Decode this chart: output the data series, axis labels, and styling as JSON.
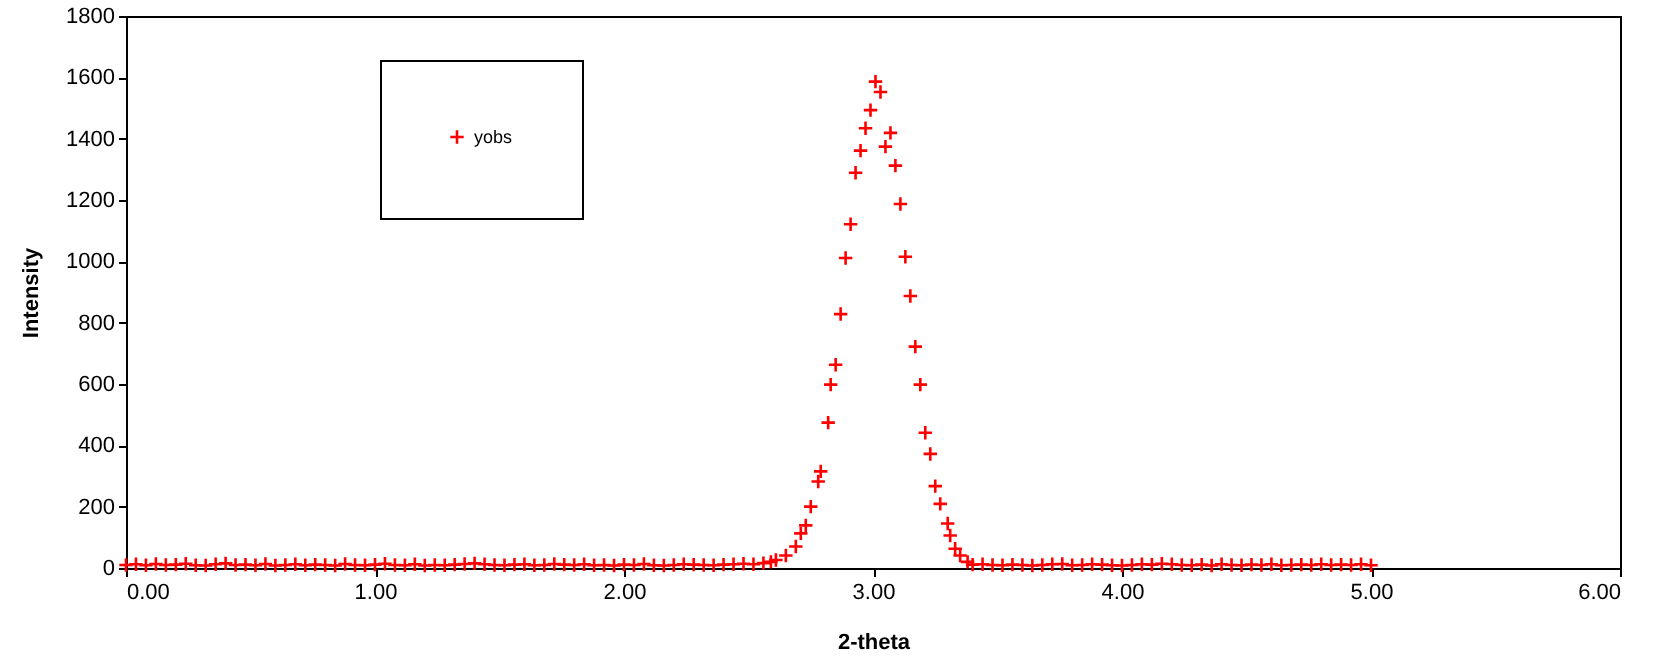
{
  "chart_data": {
    "type": "scatter",
    "xlabel": "2-theta",
    "ylabel": "Intensity",
    "marker": "cross",
    "legend": "top left",
    "grid": false,
    "xlim": [
      0,
      6
    ],
    "xticks": [
      {
        "value": 0,
        "label": "0.00"
      },
      {
        "value": 1,
        "label": "1.00"
      },
      {
        "value": 2,
        "label": "2.00"
      },
      {
        "value": 3,
        "label": "3.00"
      },
      {
        "value": 4,
        "label": "4.00"
      },
      {
        "value": 5,
        "label": "5.00"
      },
      {
        "value": 6,
        "label": "6.00"
      }
    ],
    "ylim": [
      0,
      1800
    ],
    "yticks": [
      0,
      200,
      400,
      600,
      800,
      1000,
      1200,
      1400,
      1600,
      1800
    ],
    "series": [
      {
        "name": "yobs",
        "color": "#ff0000",
        "x": [
          0,
          0.04,
          0.08,
          0.12,
          0.16,
          0.2,
          0.24,
          0.28,
          0.32,
          0.36,
          0.4,
          0.44,
          0.48,
          0.52,
          0.56,
          0.6,
          0.64,
          0.68,
          0.72,
          0.76,
          0.8,
          0.84,
          0.88,
          0.92,
          0.96,
          1.0,
          1.04,
          1.08,
          1.12,
          1.16,
          1.2,
          1.24,
          1.28,
          1.32,
          1.36,
          1.4,
          1.44,
          1.48,
          1.52,
          1.56,
          1.6,
          1.64,
          1.68,
          1.72,
          1.76,
          1.8,
          1.84,
          1.88,
          1.92,
          1.96,
          2.0,
          2.04,
          2.08,
          2.12,
          2.16,
          2.2,
          2.24,
          2.28,
          2.32,
          2.36,
          2.4,
          2.44,
          2.48,
          2.52,
          2.56,
          2.59,
          2.61,
          2.65,
          2.69,
          2.71,
          2.73,
          2.75,
          2.78,
          2.79,
          2.82,
          2.83,
          2.85,
          2.87,
          2.89,
          2.91,
          2.93,
          2.95,
          2.97,
          2.99,
          3.01,
          3.03,
          3.05,
          3.07,
          3.09,
          3.11,
          3.13,
          3.15,
          3.17,
          3.19,
          3.21,
          3.23,
          3.25,
          3.27,
          3.3,
          3.31,
          3.33,
          3.35,
          3.38,
          3.4,
          3.44,
          3.48,
          3.52,
          3.56,
          3.6,
          3.64,
          3.68,
          3.72,
          3.76,
          3.8,
          3.84,
          3.88,
          3.92,
          3.96,
          4.0,
          4.04,
          4.08,
          4.12,
          4.16,
          4.2,
          4.24,
          4.28,
          4.32,
          4.36,
          4.4,
          4.44,
          4.48,
          4.52,
          4.56,
          4.6,
          4.64,
          4.68,
          4.72,
          4.76,
          4.8,
          4.84,
          4.88,
          4.92,
          4.96,
          5.0
        ],
        "values": [
          10,
          12,
          9,
          13,
          10,
          11,
          14,
          9,
          8,
          12,
          15,
          10,
          11,
          9,
          13,
          8,
          10,
          12,
          9,
          11,
          10,
          8,
          13,
          10,
          9,
          11,
          14,
          10,
          9,
          12,
          8,
          10,
          9,
          11,
          13,
          15,
          12,
          10,
          9,
          11,
          12,
          9,
          10,
          13,
          11,
          10,
          12,
          9,
          10,
          8,
          11,
          10,
          13,
          9,
          8,
          10,
          12,
          11,
          10,
          9,
          11,
          12,
          14,
          12,
          16,
          20,
          26,
          41,
          70,
          113,
          139,
          200,
          282,
          315,
          474,
          598,
          663,
          828,
          1011,
          1121,
          1289,
          1361,
          1434,
          1493,
          1586,
          1552,
          1374,
          1419,
          1312,
          1187,
          1015,
          887,
          722,
          598,
          441,
          372,
          267,
          209,
          145,
          106,
          63,
          41,
          20,
          11,
          12,
          10,
          9,
          11,
          10,
          8,
          10,
          12,
          13,
          9,
          10,
          12,
          11,
          9,
          8,
          10,
          12,
          11,
          14,
          12,
          10,
          9,
          11,
          8,
          12,
          10,
          9,
          11,
          10,
          12,
          9,
          10,
          11,
          10,
          12,
          10,
          11,
          10,
          12,
          9
        ]
      }
    ]
  }
}
